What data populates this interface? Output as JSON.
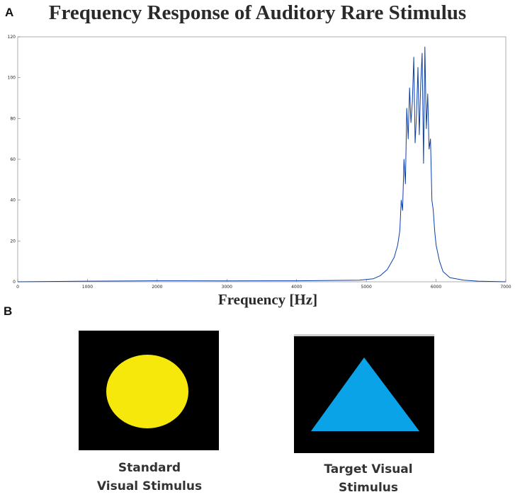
{
  "panels": {
    "a_label": "A",
    "b_label": "B"
  },
  "chart_data": {
    "type": "line",
    "title": "Frequency Response of Auditory Rare Stimulus",
    "xlabel": "Frequency [Hz]",
    "ylabel": "",
    "xlim": [
      0,
      7000
    ],
    "ylim": [
      0,
      120
    ],
    "xticks": [
      0,
      1000,
      2000,
      3000,
      4000,
      5000,
      6000,
      7000
    ],
    "yticks": [
      0,
      20,
      40,
      60,
      80,
      100,
      120
    ],
    "grid": false,
    "line_color": "#0b3fa8",
    "series": [
      {
        "x": [
          0,
          1000,
          2000,
          3000,
          4000,
          4900,
          5100,
          5200,
          5300,
          5350,
          5400,
          5450,
          5480,
          5500,
          5520,
          5540,
          5560,
          5580,
          5600,
          5620,
          5640,
          5660,
          5680,
          5700,
          5720,
          5740,
          5760,
          5780,
          5800,
          5820,
          5840,
          5860,
          5880,
          5900,
          5920,
          5940,
          5960,
          5980,
          6000,
          6050,
          6100,
          6200,
          6400,
          6600,
          7000
        ],
        "y": [
          0,
          0.3,
          0.5,
          0.4,
          0.5,
          0.8,
          1.5,
          3,
          6,
          9,
          12,
          18,
          25,
          40,
          35,
          60,
          48,
          85,
          70,
          95,
          78,
          88,
          110,
          68,
          82,
          105,
          72,
          97,
          112,
          58,
          115,
          75,
          92,
          65,
          70,
          40,
          35,
          25,
          18,
          10,
          5,
          2,
          0.8,
          0.3,
          0
        ]
      }
    ]
  },
  "stimuli": {
    "standard": {
      "caption_line1": "Standard",
      "caption_line2": "Visual Stimulus",
      "shape_color": "#f5e80a"
    },
    "target": {
      "caption_line1": "Target Visual",
      "caption_line2": "Stimulus",
      "shape_color": "#0aa3e8"
    },
    "background_color": "#000000"
  }
}
